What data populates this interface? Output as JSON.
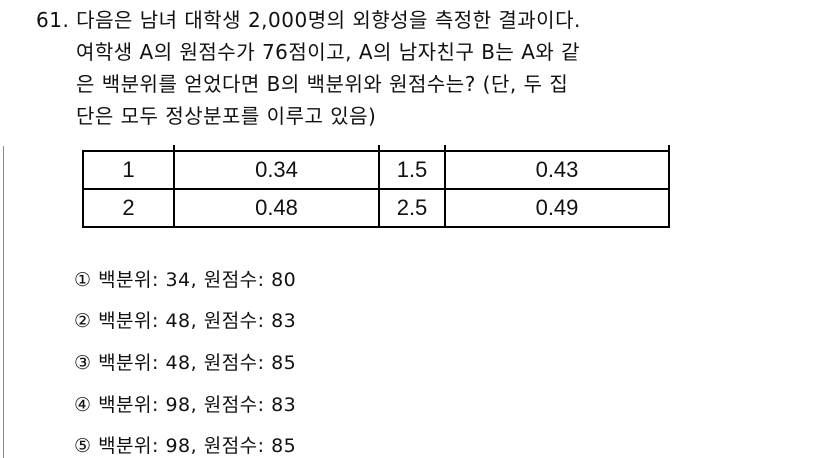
{
  "question": {
    "number": "61.",
    "lines": [
      "다음은 남녀 대학생 2,000명의 외향성을 측정한 결과이다.",
      "여학생 A의 원점수가 76점이고, A의 남자친구 B는 A와 같",
      "은 백분위를 얻었다면 B의 백분위와 원점수는? (단, 두 집",
      "단은 모두 정상분포를 이루고 있음)"
    ]
  },
  "table": {
    "rows": [
      [
        "1",
        "0.34",
        "1.5",
        "0.43"
      ],
      [
        "2",
        "0.48",
        "2.5",
        "0.49"
      ]
    ]
  },
  "options": [
    "① 백분위: 34, 원점수: 80",
    "② 백분위: 48, 원점수: 83",
    "③ 백분위: 48, 원점수: 85",
    "④ 백분위: 98, 원점수: 83",
    "⑤ 백분위: 98, 원점수: 85"
  ]
}
